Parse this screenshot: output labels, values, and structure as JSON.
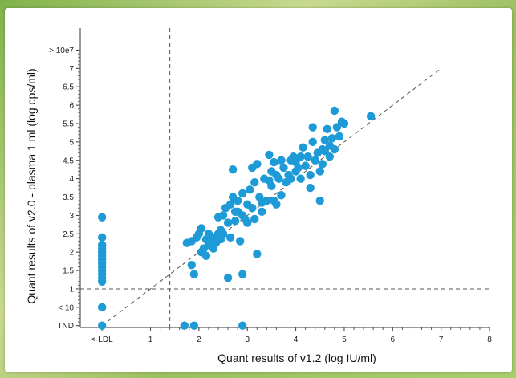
{
  "chart_data": {
    "type": "scatter",
    "xlabel": "Quant results of v1.2 (log IU/ml)",
    "ylabel": "Quant results of v2.0 - plasma 1 ml (log cps/ml)",
    "x_ticks": [
      {
        "value": 0,
        "label": "< LDL"
      },
      {
        "value": 1,
        "label": "1"
      },
      {
        "value": 2,
        "label": "2"
      },
      {
        "value": 3,
        "label": "3"
      },
      {
        "value": 4,
        "label": "4"
      },
      {
        "value": 5,
        "label": "5"
      },
      {
        "value": 6,
        "label": "6"
      },
      {
        "value": 7,
        "label": "7"
      },
      {
        "value": 8,
        "label": "8"
      }
    ],
    "y_ticks": [
      {
        "value": 0,
        "label": "TND"
      },
      {
        "value": 0.5,
        "label": "< 10"
      },
      {
        "value": 1,
        "label": "1"
      },
      {
        "value": 1.5,
        "label": "1.5"
      },
      {
        "value": 2,
        "label": "2"
      },
      {
        "value": 2.5,
        "label": "2.5"
      },
      {
        "value": 3,
        "label": "3"
      },
      {
        "value": 3.5,
        "label": "3.5"
      },
      {
        "value": 4,
        "label": "4"
      },
      {
        "value": 4.5,
        "label": "4.5"
      },
      {
        "value": 5,
        "label": "5"
      },
      {
        "value": 5.5,
        "label": "5.5"
      },
      {
        "value": 6,
        "label": "6"
      },
      {
        "value": 6.5,
        "label": "6.5"
      },
      {
        "value": 7,
        "label": "7"
      },
      {
        "value": 7.5,
        "label": "> 10e7"
      }
    ],
    "xlim": [
      -0.45,
      8
    ],
    "ylim": [
      -0.05,
      8.1
    ],
    "reference_lines": {
      "vertical_x": 1.4,
      "horizontal_y": 1,
      "diagonal": [
        [
          0,
          0
        ],
        [
          7,
          7
        ]
      ]
    },
    "grid": false,
    "point_color": "#1e9ad6",
    "points": [
      [
        0,
        0
      ],
      [
        0,
        0.5
      ],
      [
        0,
        1.2
      ],
      [
        0,
        1.3
      ],
      [
        0,
        1.4
      ],
      [
        0,
        1.5
      ],
      [
        0,
        1.6
      ],
      [
        0,
        1.7
      ],
      [
        0,
        1.8
      ],
      [
        0,
        1.9
      ],
      [
        0,
        2.0
      ],
      [
        0,
        2.1
      ],
      [
        0,
        2.2
      ],
      [
        0,
        2.4
      ],
      [
        0,
        2.95
      ],
      [
        1.7,
        0
      ],
      [
        1.9,
        0
      ],
      [
        2.9,
        0
      ],
      [
        1.75,
        2.25
      ],
      [
        1.85,
        2.3
      ],
      [
        1.85,
        1.65
      ],
      [
        1.9,
        1.4
      ],
      [
        1.95,
        2.4
      ],
      [
        2.0,
        2.5
      ],
      [
        2.05,
        2.65
      ],
      [
        2.05,
        2.0
      ],
      [
        2.1,
        2.1
      ],
      [
        2.15,
        2.35
      ],
      [
        2.15,
        1.9
      ],
      [
        2.2,
        2.2
      ],
      [
        2.2,
        2.5
      ],
      [
        2.25,
        2.3
      ],
      [
        2.3,
        2.4
      ],
      [
        2.3,
        2.1
      ],
      [
        2.35,
        2.25
      ],
      [
        2.4,
        2.5
      ],
      [
        2.4,
        2.95
      ],
      [
        2.45,
        2.6
      ],
      [
        2.45,
        2.35
      ],
      [
        2.5,
        3.0
      ],
      [
        2.5,
        2.5
      ],
      [
        2.55,
        3.2
      ],
      [
        2.6,
        2.8
      ],
      [
        2.6,
        1.3
      ],
      [
        2.65,
        3.3
      ],
      [
        2.65,
        2.4
      ],
      [
        2.7,
        3.5
      ],
      [
        2.7,
        4.25
      ],
      [
        2.75,
        3.1
      ],
      [
        2.75,
        2.85
      ],
      [
        2.8,
        3.4
      ],
      [
        2.8,
        3.1
      ],
      [
        2.85,
        2.3
      ],
      [
        2.9,
        3.6
      ],
      [
        2.9,
        3.0
      ],
      [
        2.9,
        1.4
      ],
      [
        2.95,
        2.9
      ],
      [
        3.0,
        3.3
      ],
      [
        3.0,
        2.8
      ],
      [
        3.05,
        3.7
      ],
      [
        3.1,
        3.2
      ],
      [
        3.1,
        4.3
      ],
      [
        3.15,
        3.9
      ],
      [
        3.15,
        2.9
      ],
      [
        3.2,
        4.4
      ],
      [
        3.2,
        1.95
      ],
      [
        3.25,
        3.5
      ],
      [
        3.3,
        3.35
      ],
      [
        3.3,
        3.1
      ],
      [
        3.35,
        4.0
      ],
      [
        3.4,
        3.4
      ],
      [
        3.45,
        4.65
      ],
      [
        3.45,
        3.95
      ],
      [
        3.5,
        4.2
      ],
      [
        3.5,
        3.8
      ],
      [
        3.55,
        4.45
      ],
      [
        3.55,
        3.4
      ],
      [
        3.6,
        4.1
      ],
      [
        3.6,
        3.3
      ],
      [
        3.65,
        4.0
      ],
      [
        3.7,
        4.5
      ],
      [
        3.7,
        3.55
      ],
      [
        3.75,
        4.3
      ],
      [
        3.8,
        3.9
      ],
      [
        3.85,
        4.1
      ],
      [
        3.9,
        4.5
      ],
      [
        3.9,
        4.0
      ],
      [
        3.95,
        4.6
      ],
      [
        4.0,
        4.2
      ],
      [
        4.0,
        4.45
      ],
      [
        4.05,
        4.3
      ],
      [
        4.1,
        4.6
      ],
      [
        4.1,
        4.0
      ],
      [
        4.15,
        4.85
      ],
      [
        4.2,
        4.35
      ],
      [
        4.25,
        4.6
      ],
      [
        4.3,
        4.1
      ],
      [
        4.3,
        3.75
      ],
      [
        4.35,
        5.0
      ],
      [
        4.35,
        5.4
      ],
      [
        4.4,
        4.5
      ],
      [
        4.45,
        4.7
      ],
      [
        4.5,
        4.2
      ],
      [
        4.5,
        3.4
      ],
      [
        4.55,
        4.8
      ],
      [
        4.55,
        4.4
      ],
      [
        4.6,
        5.05
      ],
      [
        4.6,
        4.75
      ],
      [
        4.65,
        5.35
      ],
      [
        4.7,
        4.6
      ],
      [
        4.7,
        4.9
      ],
      [
        4.75,
        5.1
      ],
      [
        4.8,
        4.8
      ],
      [
        4.8,
        5.85
      ],
      [
        4.85,
        5.4
      ],
      [
        4.9,
        5.15
      ],
      [
        4.95,
        5.55
      ],
      [
        5.0,
        5.5
      ],
      [
        5.55,
        5.7
      ]
    ]
  }
}
